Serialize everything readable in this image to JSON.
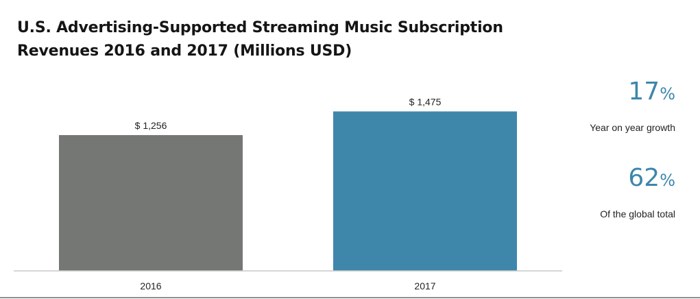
{
  "chart_data": {
    "type": "bar",
    "title": "U.S. Advertising-Supported Streaming Music Subscription Revenues 2016 and 2017 (Millions USD)",
    "title_lines": [
      "U.S. Advertising-Supported Streaming Music Subscription",
      "Revenues 2016 and 2017 (Millions USD)"
    ],
    "categories": [
      "2016",
      "2017"
    ],
    "values": [
      1256,
      1475
    ],
    "data_labels": [
      "$ 1,256",
      "$ 1,475"
    ],
    "colors": [
      "#757775",
      "#3f86ab"
    ],
    "ylim": [
      0,
      1700
    ],
    "grid": false,
    "legend": false
  },
  "stats": [
    {
      "value": "17",
      "unit": "%",
      "label": "Year on year growth"
    },
    {
      "value": "62",
      "unit": "%",
      "label": "Of the global total"
    }
  ],
  "colors": {
    "accent": "#3d86ab",
    "bar_2016": "#757775",
    "bar_2017": "#3f86ab",
    "axis": "#c8c8c8"
  }
}
